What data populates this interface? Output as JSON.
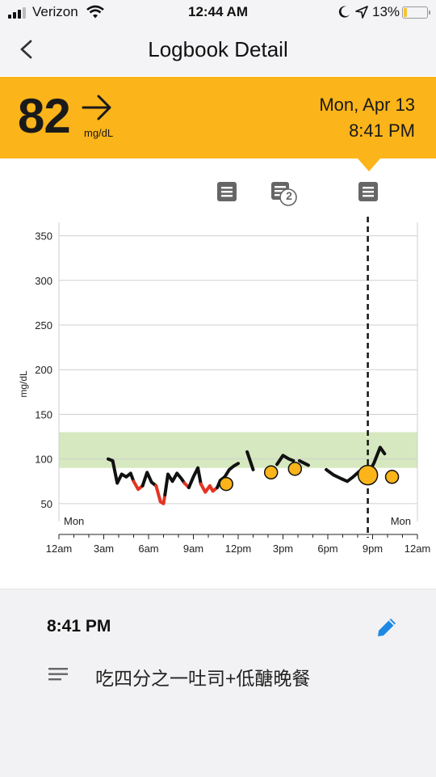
{
  "status_bar": {
    "carrier": "Verizon",
    "time": "12:44 AM",
    "battery": "13%",
    "battery_level": 0.13,
    "battery_color": "#f4c430"
  },
  "nav": {
    "title": "Logbook Detail",
    "back_icon": "chevron-left-icon"
  },
  "reading": {
    "value": "82",
    "unit": "mg/dL",
    "trend_icon": "arrow-right-icon",
    "date": "Mon, Apr 13",
    "time": "8:41 PM",
    "header_color": "#fbb419"
  },
  "note_markers": [
    {
      "icon": "note-icon",
      "count": ""
    },
    {
      "icon": "note-stack-icon",
      "count": "2"
    },
    {
      "icon": "note-icon",
      "count": ""
    }
  ],
  "chart_data": {
    "type": "line",
    "ylabel": "mg/dL",
    "y_ticks": [
      "350",
      "300",
      "250",
      "200",
      "150",
      "100",
      "50"
    ],
    "ylim": [
      30,
      365
    ],
    "x_ticks": [
      "12am",
      "3am",
      "6am",
      "9am",
      "12pm",
      "3pm",
      "6pm",
      "9pm",
      "12am"
    ],
    "day_labels": {
      "left": "Mon",
      "right": "Mon"
    },
    "target_range": [
      90,
      130
    ],
    "grid": true,
    "selected_time_hours": 20.68,
    "colors": {
      "normal": "#111111",
      "low": "#e53322",
      "target": "#d6e8bf",
      "marker": "#fbb419"
    },
    "segments": [
      {
        "status": "normal",
        "points": [
          [
            3.3,
            100
          ],
          [
            3.6,
            98
          ],
          [
            3.9,
            73
          ],
          [
            4.2,
            83
          ],
          [
            4.5,
            80
          ],
          [
            4.8,
            84
          ],
          [
            5.0,
            75
          ]
        ]
      },
      {
        "status": "low",
        "points": [
          [
            5.0,
            75
          ],
          [
            5.3,
            66
          ],
          [
            5.6,
            70
          ]
        ]
      },
      {
        "status": "normal",
        "points": [
          [
            5.6,
            70
          ],
          [
            5.9,
            85
          ],
          [
            6.2,
            74
          ],
          [
            6.5,
            70
          ]
        ]
      },
      {
        "status": "low",
        "points": [
          [
            6.5,
            70
          ],
          [
            6.8,
            52
          ],
          [
            7.0,
            50
          ],
          [
            7.1,
            60
          ]
        ]
      },
      {
        "status": "normal",
        "points": [
          [
            7.1,
            60
          ],
          [
            7.3,
            83
          ],
          [
            7.6,
            75
          ],
          [
            7.9,
            84
          ],
          [
            8.2,
            78
          ],
          [
            8.4,
            73
          ]
        ]
      },
      {
        "status": "low",
        "points": [
          [
            8.4,
            73
          ],
          [
            8.7,
            68
          ]
        ]
      },
      {
        "status": "normal",
        "points": [
          [
            8.7,
            68
          ],
          [
            9.0,
            80
          ],
          [
            9.3,
            90
          ],
          [
            9.5,
            72
          ]
        ]
      },
      {
        "status": "low",
        "points": [
          [
            9.5,
            72
          ],
          [
            9.8,
            63
          ],
          [
            10.1,
            70
          ],
          [
            10.3,
            64
          ],
          [
            10.6,
            68
          ]
        ]
      },
      {
        "status": "normal",
        "points": [
          [
            10.6,
            68
          ],
          [
            10.8,
            76
          ],
          [
            11.1,
            80
          ],
          [
            11.4,
            88
          ],
          [
            11.7,
            92
          ],
          [
            12.0,
            95
          ]
        ]
      },
      {
        "status": "normal",
        "points": [
          [
            12.6,
            108
          ],
          [
            13.0,
            88
          ]
        ]
      },
      {
        "status": "normal",
        "points": [
          [
            14.6,
            94
          ],
          [
            15.0,
            104
          ],
          [
            15.4,
            100
          ],
          [
            15.7,
            98
          ]
        ]
      },
      {
        "status": "normal",
        "points": [
          [
            16.1,
            98
          ],
          [
            16.7,
            93
          ]
        ]
      },
      {
        "status": "normal",
        "points": [
          [
            17.9,
            88
          ],
          [
            18.4,
            82
          ],
          [
            18.9,
            78
          ],
          [
            19.3,
            75
          ],
          [
            19.7,
            80
          ],
          [
            20.1,
            86
          ],
          [
            20.5,
            86
          ]
        ]
      },
      {
        "status": "normal",
        "points": [
          [
            20.8,
            86
          ],
          [
            21.1,
            96
          ],
          [
            21.5,
            113
          ],
          [
            21.8,
            106
          ]
        ]
      }
    ],
    "markers": [
      {
        "x": 11.2,
        "y": 72,
        "size": "small"
      },
      {
        "x": 14.2,
        "y": 85,
        "size": "small"
      },
      {
        "x": 15.8,
        "y": 89,
        "size": "small"
      },
      {
        "x": 20.68,
        "y": 82,
        "size": "large"
      },
      {
        "x": 22.3,
        "y": 80,
        "size": "small"
      }
    ]
  },
  "note_detail": {
    "time": "8:41 PM",
    "edit_icon": "pencil-icon",
    "lines_icon": "lines-icon",
    "text": "吃四分之一吐司+低醣晚餐",
    "accent": "#1e88e5"
  }
}
